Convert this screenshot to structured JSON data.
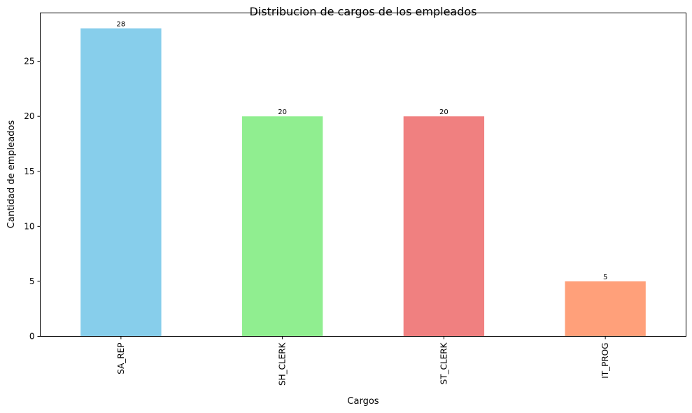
{
  "chart_data": {
    "type": "bar",
    "title": "Distribucion de cargos de los empleados",
    "xlabel": "Cargos",
    "ylabel": "Cantidad de empleados",
    "categories": [
      "SA_REP",
      "SH_CLERK",
      "ST_CLERK",
      "IT_PROG"
    ],
    "values": [
      28,
      20,
      20,
      5
    ],
    "colors": [
      "#87ceeb",
      "#90ee90",
      "#f08080",
      "#ffa07a"
    ],
    "ylim": [
      0,
      29.4
    ],
    "yticks": [
      0,
      5,
      10,
      15,
      20,
      25
    ],
    "grid": false,
    "legend": "none",
    "data_labels": [
      "28",
      "20",
      "20",
      "5"
    ]
  }
}
